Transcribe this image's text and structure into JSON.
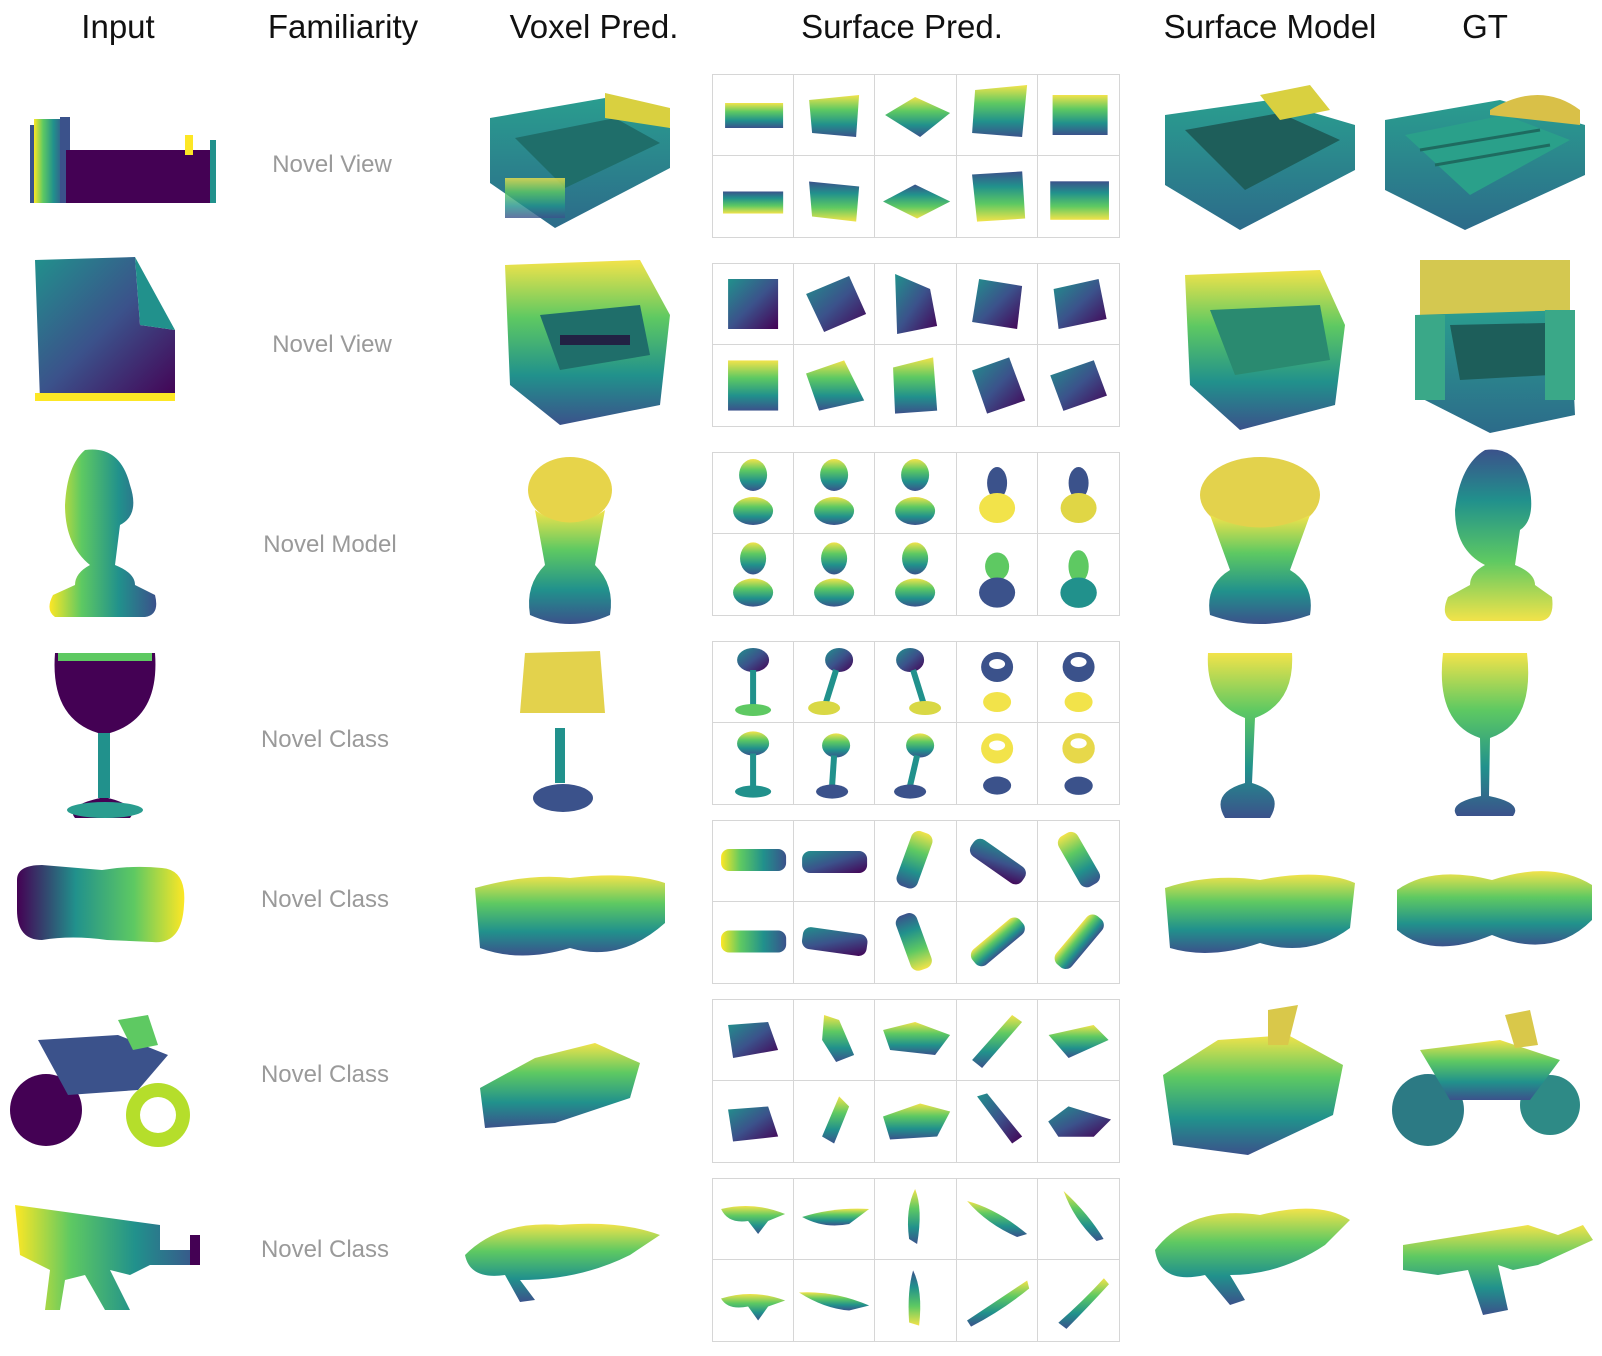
{
  "headers": {
    "input": "Input",
    "familiarity": "Familiarity",
    "voxel": "Voxel Pred.",
    "surface_pred": "Surface Pred.",
    "surface_model": "Surface Model",
    "gt": "GT"
  },
  "rows": [
    {
      "object": "bed-icon",
      "familiarity": "Novel View"
    },
    {
      "object": "armchair-icon",
      "familiarity": "Novel View"
    },
    {
      "object": "chess-knight-icon",
      "familiarity": "Novel Model"
    },
    {
      "object": "wine-glass-icon",
      "familiarity": "Novel Class"
    },
    {
      "object": "dumbbell-icon",
      "familiarity": "Novel Class"
    },
    {
      "object": "motorcycle-icon",
      "familiarity": "Novel Class"
    },
    {
      "object": "rifle-icon",
      "familiarity": "Novel Class"
    }
  ],
  "colors": {
    "viridis": [
      "#440154",
      "#3b528b",
      "#21918c",
      "#5ec962",
      "#fde725"
    ],
    "grid_border": "#d6d6d6",
    "familiarity_text": "#9a9a9a"
  }
}
